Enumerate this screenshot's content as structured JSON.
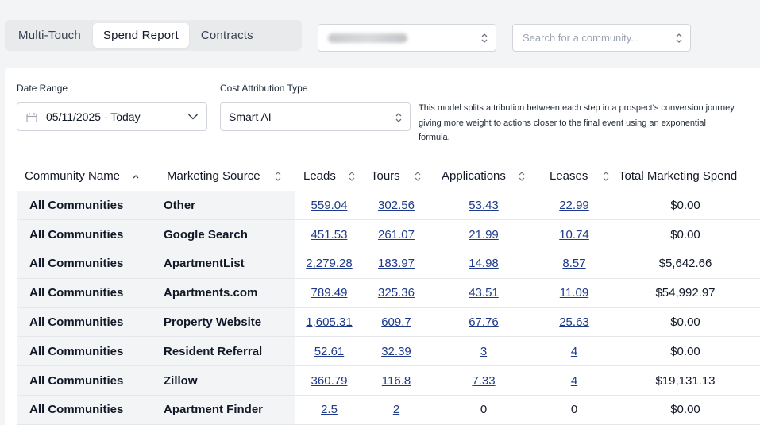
{
  "tabs": [
    {
      "label": "Multi-Touch",
      "active": false
    },
    {
      "label": "Spend Report",
      "active": true
    },
    {
      "label": "Contracts",
      "active": false
    }
  ],
  "community_search": {
    "placeholder": "Search for a community..."
  },
  "filters": {
    "date_range_label": "Date Range",
    "date_range_value": "05/11/2025 - Today",
    "cost_type_label": "Cost Attribution Type",
    "cost_type_value": "Smart AI",
    "description": "This model splits attribution between each step in a prospect's conversion journey, giving more weight to actions closer to the final event using an exponential formula."
  },
  "table": {
    "headers": [
      "Community Name",
      "Marketing Source",
      "Leads",
      "Tours",
      "Applications",
      "Leases",
      "Total Marketing Spend"
    ],
    "rows": [
      {
        "community": "All Communities",
        "source": "Other",
        "leads": "559.04",
        "tours": "302.56",
        "applications": "53.43",
        "leases": "22.99",
        "spend": "$0.00"
      },
      {
        "community": "All Communities",
        "source": "Google Search",
        "leads": "451.53",
        "tours": "261.07",
        "applications": "21.99",
        "leases": "10.74",
        "spend": "$0.00"
      },
      {
        "community": "All Communities",
        "source": "ApartmentList",
        "leads": "2,279.28",
        "tours": "183.97",
        "applications": "14.98",
        "leases": "8.57",
        "spend": "$5,642.66"
      },
      {
        "community": "All Communities",
        "source": "Apartments.com",
        "leads": "789.49",
        "tours": "325.36",
        "applications": "43.51",
        "leases": "11.09",
        "spend": "$54,992.97"
      },
      {
        "community": "All Communities",
        "source": "Property Website",
        "leads": "1,605.31",
        "tours": "609.7",
        "applications": "67.76",
        "leases": "25.63",
        "spend": "$0.00"
      },
      {
        "community": "All Communities",
        "source": "Resident Referral",
        "leads": "52.61",
        "tours": "32.39",
        "applications": "3",
        "leases": "4",
        "spend": "$0.00"
      },
      {
        "community": "All Communities",
        "source": "Zillow",
        "leads": "360.79",
        "tours": "116.8",
        "applications": "7.33",
        "leases": "4",
        "spend": "$19,131.13"
      },
      {
        "community": "All Communities",
        "source": "Apartment Finder",
        "leads": "2.5",
        "tours": "2",
        "applications": "0",
        "leases": "0",
        "spend": "$0.00"
      }
    ]
  },
  "icons": {
    "calendar": "calendar-icon",
    "chevron": "chevron-down-icon",
    "sort": "sort-icon",
    "updown": "updown-chevron-icon"
  },
  "colors": {
    "link": "#1e3a8a",
    "accent_bg": "#f3f4f6"
  }
}
